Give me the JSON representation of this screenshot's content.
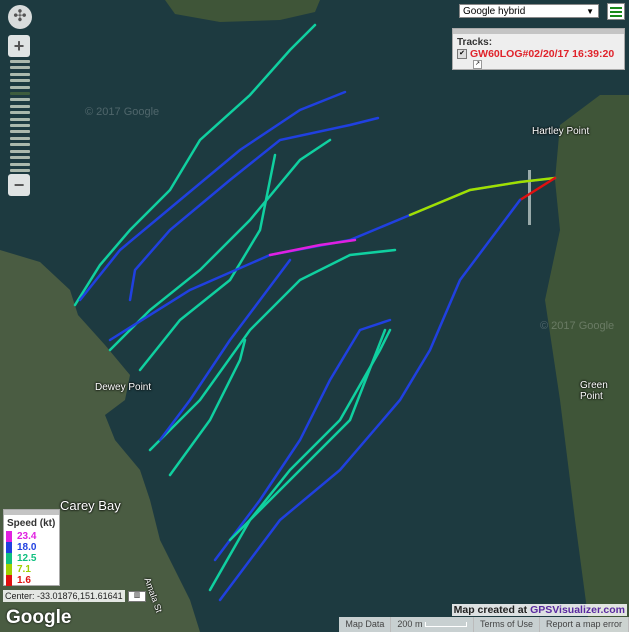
{
  "map": {
    "type_select": "Google hybrid",
    "watermark": "© 2017 Google",
    "places": [
      "Hartley Point",
      "Dewey Point",
      "Carey Bay",
      "Green Point",
      "Amala St"
    ],
    "colors": {
      "water": "#1d3a40",
      "land": "#3d5236",
      "track_fast": "#e020e0",
      "track_high": "#2040e0",
      "track_mid": "#10d0a0",
      "track_low": "#a0e000",
      "track_slow": "#e01010"
    }
  },
  "tracks_panel": {
    "title": "Tracks:",
    "items": [
      {
        "name": "GW60LOG#02/20/17 16:39:20",
        "checked": true,
        "color": "#e0222a"
      }
    ]
  },
  "legend": {
    "title": "Speed (kt)",
    "entries": [
      {
        "value": "23.4",
        "color": "#e020e0"
      },
      {
        "value": "18.0",
        "color": "#2040e0"
      },
      {
        "value": "12.5",
        "color": "#10c080"
      },
      {
        "value": "7.1",
        "color": "#a0d000"
      },
      {
        "value": "1.6",
        "color": "#e01010"
      }
    ]
  },
  "center": "Center: -33.01876,151.61641",
  "logo": "Google",
  "credit": {
    "prefix": "Map created at ",
    "link": "GPSVisualizer.com"
  },
  "footer": {
    "map_data": "Map Data",
    "scale": "200 m",
    "terms": "Terms of Use",
    "report": "Report a map error"
  },
  "icons": {
    "compass": "pan-icon",
    "zoom_in": "plus-icon",
    "zoom_out": "minus-icon",
    "menu": "hamburger-icon"
  }
}
